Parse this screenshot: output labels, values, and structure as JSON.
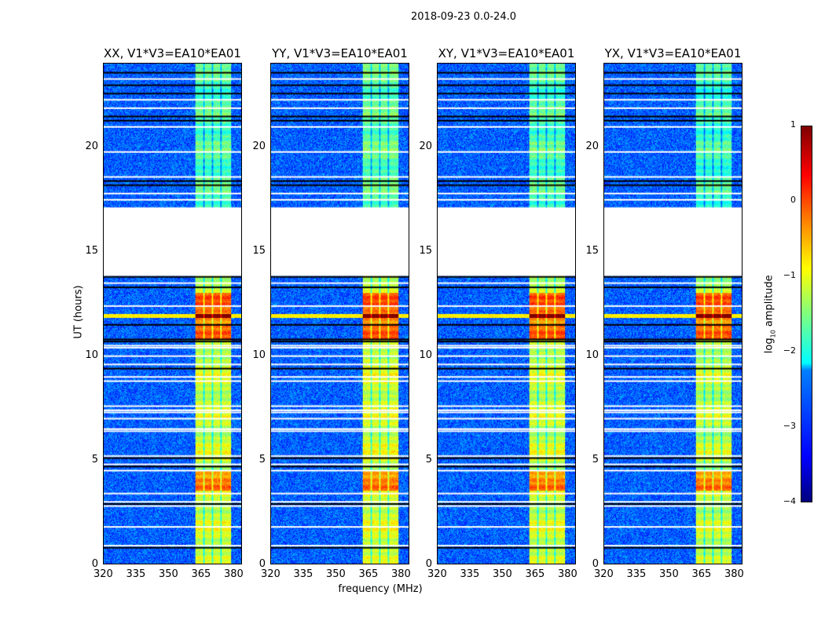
{
  "suptitle": "2018-09-23 0.0-24.0",
  "chart_data": {
    "type": "heatmap",
    "title": "2018-09-23 0.0-24.0",
    "xlabel": "frequency (MHz)",
    "ylabel": "UT (hours)",
    "xlim": [
      320,
      384
    ],
    "ylim": [
      0,
      24
    ],
    "xticks": [
      "320",
      "335",
      "350",
      "365",
      "380"
    ],
    "xtick_values": [
      320,
      335,
      350,
      365,
      380
    ],
    "yticks": [
      "0",
      "5",
      "10",
      "15",
      "20"
    ],
    "ytick_values": [
      0,
      5,
      10,
      15,
      20
    ],
    "panels": [
      {
        "title": "XX, V1*V3=EA10*EA01",
        "band_strength": 1.0
      },
      {
        "title": "YY, V1*V3=EA10*EA01",
        "band_strength": 1.05
      },
      {
        "title": "XY, V1*V3=EA10*EA01",
        "band_strength": 1.0
      },
      {
        "title": "YX, V1*V3=EA10*EA01",
        "band_strength": 0.95
      }
    ],
    "colorbar": {
      "label": "log10 amplitude",
      "label_main": "log",
      "label_sub": "10",
      "label_rest": " amplitude",
      "range": [
        -4,
        1
      ],
      "ticks": [
        "1",
        "0",
        "−1",
        "−2",
        "−3",
        "−4"
      ],
      "tick_values": [
        1,
        0,
        -1,
        -2,
        -3,
        -4
      ],
      "colormap": "jet"
    },
    "background_level": -2.9,
    "rfi_band_mhz": [
      362.5,
      379
    ],
    "rfi_subband_edges_mhz": [
      366.5,
      370.5,
      374.5
    ],
    "no_data_hours": [
      13.8,
      17.1
    ],
    "flagged_hours_white": [
      0.9,
      1.8,
      2.8,
      3.0,
      3.4,
      4.5,
      4.8,
      5.2,
      6.4,
      6.5,
      7.0,
      7.3,
      7.4,
      7.6,
      8.8,
      9.0,
      9.6,
      10.0,
      10.4,
      10.5,
      12.4,
      13.5,
      17.5,
      17.8,
      18.6,
      19.8,
      21.0,
      21.9,
      22.3,
      23.3
    ],
    "flagged_hours_black": [
      0.8,
      2.9,
      4.7,
      5.1,
      9.4,
      10.7,
      10.8,
      11.5,
      13.3,
      13.8,
      18.2,
      18.4,
      21.3,
      21.5,
      22.6,
      23.0,
      23.6
    ],
    "strong_rfi_hours": [
      [
        3.5,
        4.5,
        0.5
      ],
      [
        10.8,
        13.0,
        0.6
      ],
      [
        11.8,
        12.0,
        1.0
      ]
    ]
  }
}
